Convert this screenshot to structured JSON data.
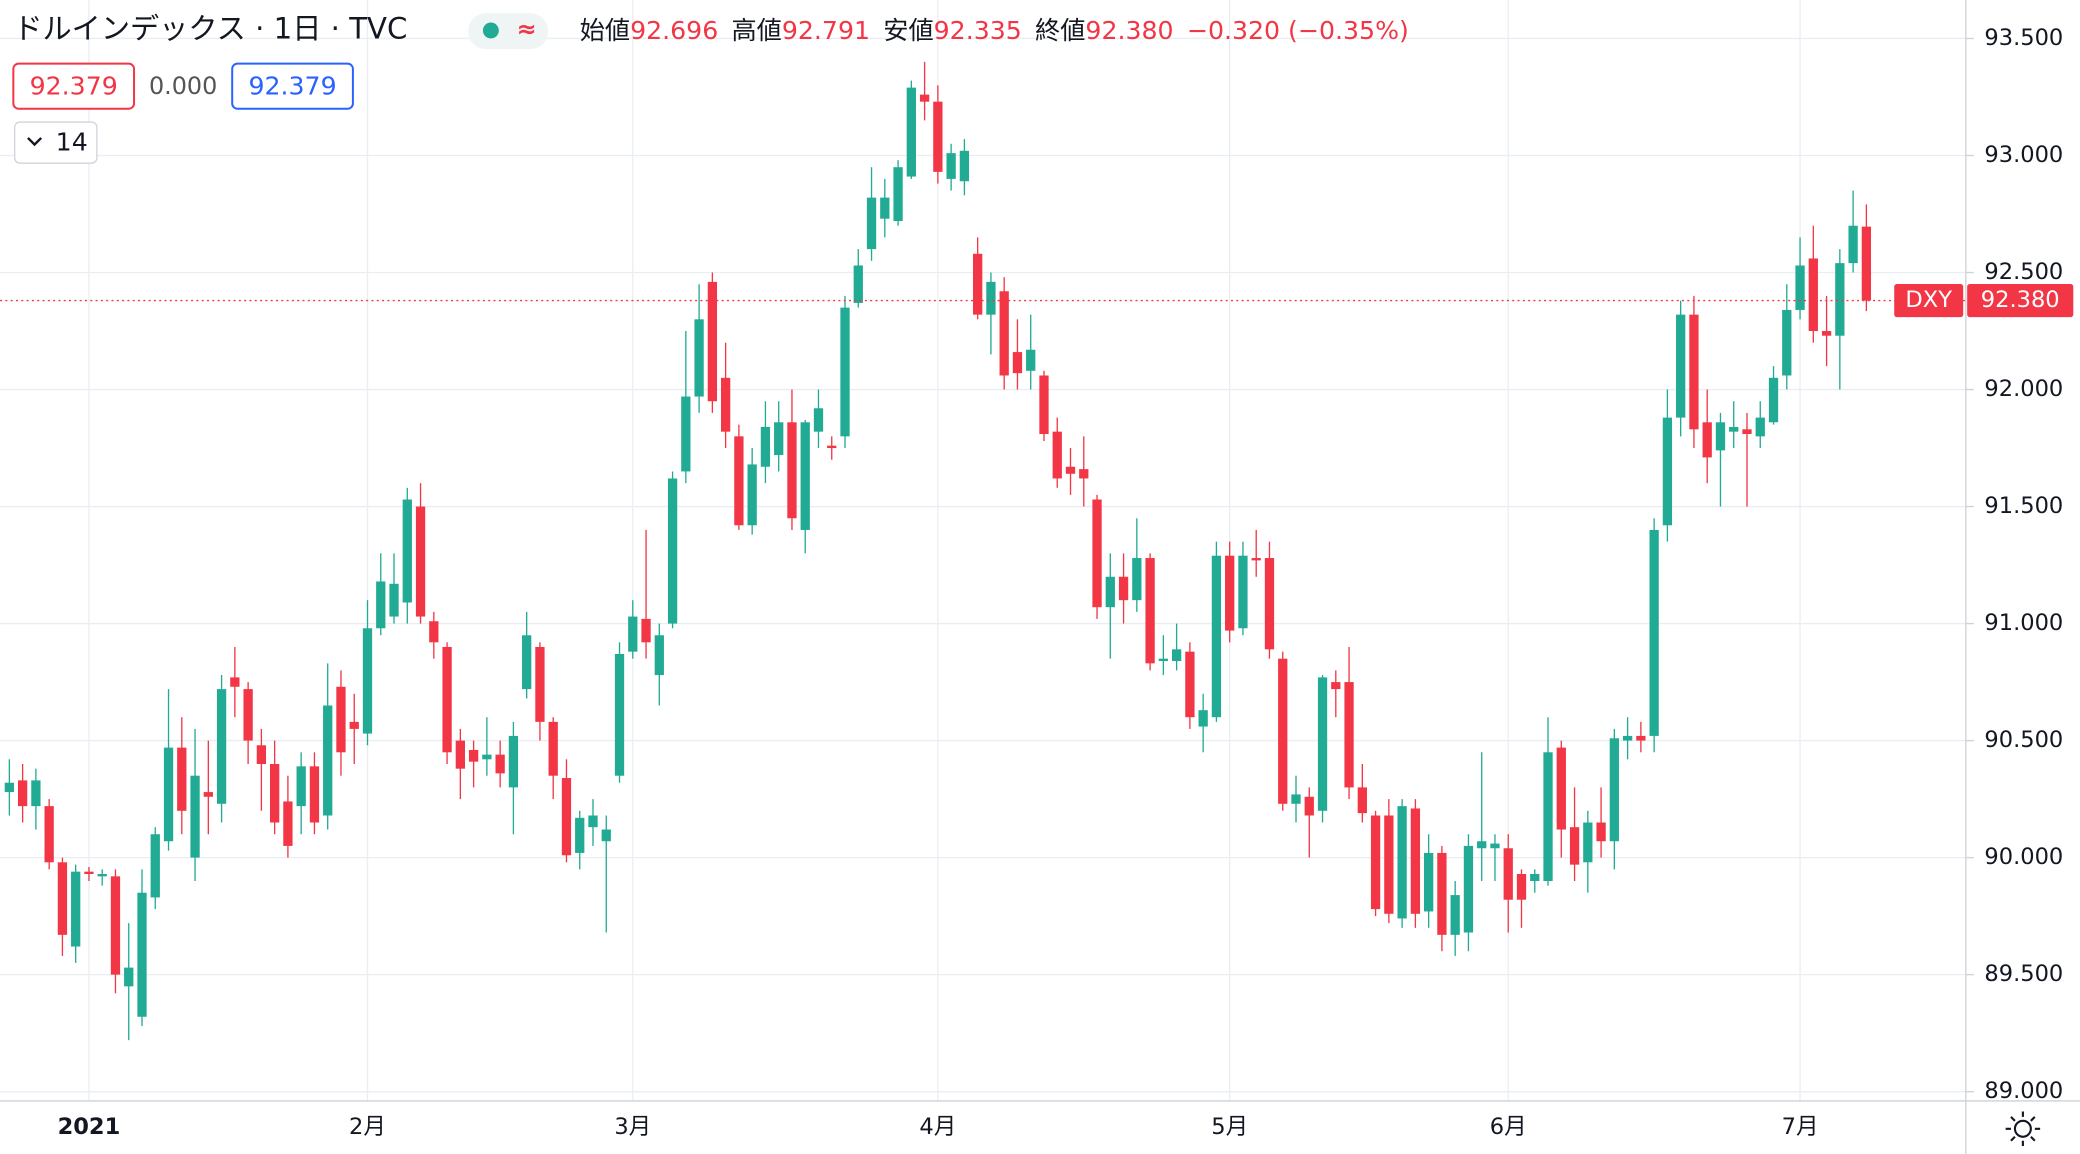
{
  "chart_data": {
    "type": "candlestick",
    "title": "ドルインデックス · 1日 · TVC",
    "ohlc_legend": [
      {
        "label": "始値",
        "value": "92.696"
      },
      {
        "label": "高値",
        "value": "92.791"
      },
      {
        "label": "安値",
        "value": "92.335"
      },
      {
        "label": "終値",
        "value": "92.380"
      }
    ],
    "change": "−0.320 (−0.35%)",
    "inputs": [
      "92.379",
      "0.000",
      "92.379"
    ],
    "interval_dropdown": 14,
    "symbol": "DXY",
    "last_price_label": "92.380",
    "up_color": "#22ab94",
    "down_color": "#f23645",
    "grid": true,
    "ylim": [
      89,
      93.5
    ],
    "yticks": [
      {
        "value": 89,
        "label": "89.000"
      },
      {
        "value": 89.5,
        "label": "89.500"
      },
      {
        "value": 90,
        "label": "90.000"
      },
      {
        "value": 90.5,
        "label": "90.500"
      },
      {
        "value": 91,
        "label": "91.000"
      },
      {
        "value": 91.5,
        "label": "91.500"
      },
      {
        "value": 92,
        "label": "92.000"
      },
      {
        "value": 92.5,
        "label": "92.500"
      },
      {
        "value": 93,
        "label": "93.000"
      },
      {
        "value": 93.5,
        "label": "93.500"
      }
    ],
    "categories": [
      null,
      null,
      null,
      null,
      null,
      null,
      "2021",
      null,
      null,
      null,
      null,
      null,
      null,
      null,
      null,
      null,
      null,
      null,
      null,
      null,
      null,
      null,
      null,
      null,
      null,
      null,
      null,
      "2月",
      null,
      null,
      null,
      null,
      null,
      null,
      null,
      null,
      null,
      null,
      null,
      null,
      null,
      null,
      null,
      null,
      null,
      null,
      null,
      "3月",
      null,
      null,
      null,
      null,
      null,
      null,
      null,
      null,
      null,
      null,
      null,
      null,
      null,
      null,
      null,
      null,
      null,
      null,
      null,
      null,
      null,
      null,
      "4月",
      null,
      null,
      null,
      null,
      null,
      null,
      null,
      null,
      null,
      null,
      null,
      null,
      null,
      null,
      null,
      null,
      null,
      null,
      null,
      null,
      null,
      "5月",
      null,
      null,
      null,
      null,
      null,
      null,
      null,
      null,
      null,
      null,
      null,
      null,
      null,
      null,
      null,
      null,
      null,
      null,
      null,
      null,
      "6月",
      null,
      null,
      null,
      null,
      null,
      null,
      null,
      null,
      null,
      null,
      null,
      null,
      null,
      null,
      null,
      null,
      null,
      null,
      null,
      null,
      null,
      "7月",
      null,
      null,
      null,
      null,
      null
    ],
    "open": [
      90.28,
      90.33,
      90.22,
      90.22,
      89.98,
      89.62,
      89.94,
      89.92,
      89.92,
      89.45,
      89.32,
      89.83,
      90.07,
      90.47,
      90.0,
      90.28,
      90.23,
      90.77,
      90.72,
      90.48,
      90.4,
      90.24,
      90.22,
      90.39,
      90.18,
      90.73,
      90.58,
      90.53,
      90.98,
      91.03,
      91.09,
      91.5,
      91.01,
      90.9,
      90.5,
      90.46,
      90.42,
      90.44,
      90.3,
      90.72,
      90.9,
      90.58,
      90.34,
      90.02,
      90.13,
      90.07,
      90.35,
      90.88,
      91.02,
      90.78,
      91.0,
      91.65,
      91.97,
      92.46,
      92.05,
      91.8,
      91.42,
      91.67,
      91.72,
      91.86,
      91.4,
      91.82,
      91.76,
      91.8,
      92.37,
      92.6,
      92.73,
      92.72,
      92.91,
      93.26,
      93.23,
      92.9,
      92.89,
      92.58,
      92.32,
      92.42,
      92.16,
      92.08,
      92.06,
      91.82,
      91.67,
      91.66,
      91.53,
      91.07,
      91.2,
      91.1,
      91.28,
      90.84,
      90.84,
      90.88,
      90.56,
      90.6,
      91.29,
      90.98,
      91.28,
      91.28,
      90.85,
      90.23,
      90.26,
      90.2,
      90.75,
      90.75,
      90.3,
      90.18,
      90.18,
      89.74,
      90.21,
      89.77,
      90.02,
      89.67,
      89.68,
      90.04,
      90.04,
      90.04,
      89.93,
      89.9,
      89.9,
      90.47,
      90.13,
      89.98,
      90.15,
      90.07,
      90.5,
      90.52,
      90.52,
      91.42,
      91.88,
      92.32,
      91.86,
      91.74,
      91.82,
      91.83,
      91.8,
      91.86,
      92.06,
      92.34,
      92.56,
      92.25,
      92.23,
      92.54,
      92.696
    ],
    "high": [
      90.42,
      90.4,
      90.38,
      90.25,
      90.0,
      89.97,
      89.96,
      89.95,
      89.95,
      89.72,
      89.95,
      90.13,
      90.72,
      90.6,
      90.55,
      90.5,
      90.78,
      90.9,
      90.75,
      90.55,
      90.5,
      90.35,
      90.45,
      90.45,
      90.83,
      90.8,
      90.7,
      91.1,
      91.3,
      91.3,
      91.58,
      91.6,
      91.05,
      90.92,
      90.55,
      90.5,
      90.6,
      90.5,
      90.58,
      91.05,
      90.92,
      90.6,
      90.42,
      90.2,
      90.25,
      90.18,
      90.92,
      91.1,
      91.4,
      91.0,
      91.65,
      92.25,
      92.45,
      92.5,
      92.2,
      91.85,
      91.75,
      91.95,
      91.95,
      92.0,
      91.87,
      92.0,
      91.8,
      92.4,
      92.6,
      92.95,
      92.9,
      92.98,
      93.32,
      93.4,
      93.3,
      93.05,
      93.07,
      92.65,
      92.5,
      92.48,
      92.3,
      92.32,
      92.08,
      91.88,
      91.75,
      91.8,
      91.55,
      91.3,
      91.3,
      91.45,
      91.3,
      90.95,
      91.0,
      90.92,
      90.7,
      91.35,
      91.35,
      91.35,
      91.4,
      91.35,
      90.88,
      90.35,
      90.3,
      90.78,
      90.8,
      90.9,
      90.4,
      90.2,
      90.25,
      90.25,
      90.25,
      90.1,
      90.05,
      89.9,
      90.1,
      90.45,
      90.1,
      90.1,
      89.95,
      89.95,
      90.6,
      90.5,
      90.3,
      90.2,
      90.3,
      90.55,
      90.6,
      90.58,
      91.45,
      92.0,
      92.38,
      92.4,
      92.0,
      91.9,
      91.95,
      91.9,
      91.95,
      92.1,
      92.45,
      92.65,
      92.7,
      92.4,
      92.6,
      92.85,
      92.791
    ],
    "low": [
      90.18,
      90.15,
      90.12,
      89.95,
      89.58,
      89.55,
      89.9,
      89.88,
      89.42,
      89.22,
      89.28,
      89.78,
      90.03,
      90.1,
      89.9,
      90.1,
      90.15,
      90.6,
      90.4,
      90.2,
      90.1,
      90.0,
      90.1,
      90.1,
      90.12,
      90.35,
      90.4,
      90.48,
      90.95,
      91.0,
      91.0,
      91.0,
      90.85,
      90.4,
      90.25,
      90.3,
      90.35,
      90.3,
      90.1,
      90.68,
      90.5,
      90.25,
      89.98,
      89.95,
      90.05,
      89.68,
      90.32,
      90.85,
      90.85,
      90.65,
      90.98,
      91.6,
      91.9,
      91.9,
      91.75,
      91.4,
      91.38,
      91.6,
      91.65,
      91.4,
      91.3,
      91.75,
      91.7,
      91.75,
      92.35,
      92.55,
      92.65,
      92.7,
      92.9,
      93.15,
      92.88,
      92.85,
      92.83,
      92.3,
      92.15,
      92.0,
      92.0,
      92.0,
      91.78,
      91.58,
      91.55,
      91.5,
      91.02,
      90.85,
      91.0,
      91.05,
      90.8,
      90.78,
      90.8,
      90.55,
      90.45,
      90.58,
      90.92,
      90.95,
      91.2,
      90.85,
      90.2,
      90.15,
      90.0,
      90.15,
      90.6,
      90.25,
      90.15,
      89.75,
      89.72,
      89.7,
      89.7,
      89.7,
      89.6,
      89.58,
      89.6,
      89.9,
      89.9,
      89.68,
      89.7,
      89.85,
      89.88,
      90.0,
      89.9,
      89.85,
      90.0,
      89.95,
      90.42,
      90.45,
      90.45,
      91.35,
      91.8,
      91.75,
      91.6,
      91.5,
      91.75,
      91.5,
      91.75,
      91.85,
      92.0,
      92.3,
      92.2,
      92.1,
      92.0,
      92.5,
      92.335
    ],
    "close": [
      90.32,
      90.22,
      90.33,
      89.98,
      89.67,
      89.94,
      89.93,
      89.93,
      89.5,
      89.53,
      89.85,
      90.1,
      90.47,
      90.2,
      90.35,
      90.26,
      90.72,
      90.73,
      90.5,
      90.4,
      90.15,
      90.05,
      90.39,
      90.15,
      90.65,
      90.45,
      90.55,
      90.98,
      91.18,
      91.17,
      91.53,
      91.03,
      90.92,
      90.45,
      90.38,
      90.41,
      90.44,
      90.36,
      90.52,
      90.95,
      90.58,
      90.35,
      90.01,
      90.17,
      90.18,
      90.12,
      90.87,
      91.03,
      90.92,
      90.95,
      91.62,
      91.97,
      92.3,
      91.95,
      91.82,
      91.42,
      91.68,
      91.84,
      91.86,
      91.45,
      91.86,
      91.92,
      91.75,
      92.35,
      92.53,
      92.82,
      92.82,
      92.95,
      93.29,
      93.23,
      92.93,
      93.01,
      93.02,
      92.32,
      92.46,
      92.06,
      92.07,
      92.17,
      91.81,
      91.62,
      91.64,
      91.62,
      91.07,
      91.2,
      91.1,
      91.28,
      90.83,
      90.85,
      90.89,
      90.6,
      90.63,
      91.29,
      90.97,
      91.29,
      91.27,
      90.89,
      90.23,
      90.27,
      90.18,
      90.77,
      90.72,
      90.3,
      90.19,
      89.78,
      89.76,
      90.22,
      89.76,
      90.02,
      89.67,
      89.84,
      90.05,
      90.07,
      90.06,
      89.82,
      89.82,
      89.93,
      90.45,
      90.12,
      89.97,
      90.15,
      90.07,
      90.51,
      90.52,
      90.5,
      91.4,
      91.88,
      92.32,
      91.83,
      91.71,
      91.86,
      91.84,
      91.81,
      91.88,
      92.05,
      92.34,
      92.53,
      92.25,
      92.23,
      92.54,
      92.7,
      92.38
    ]
  }
}
